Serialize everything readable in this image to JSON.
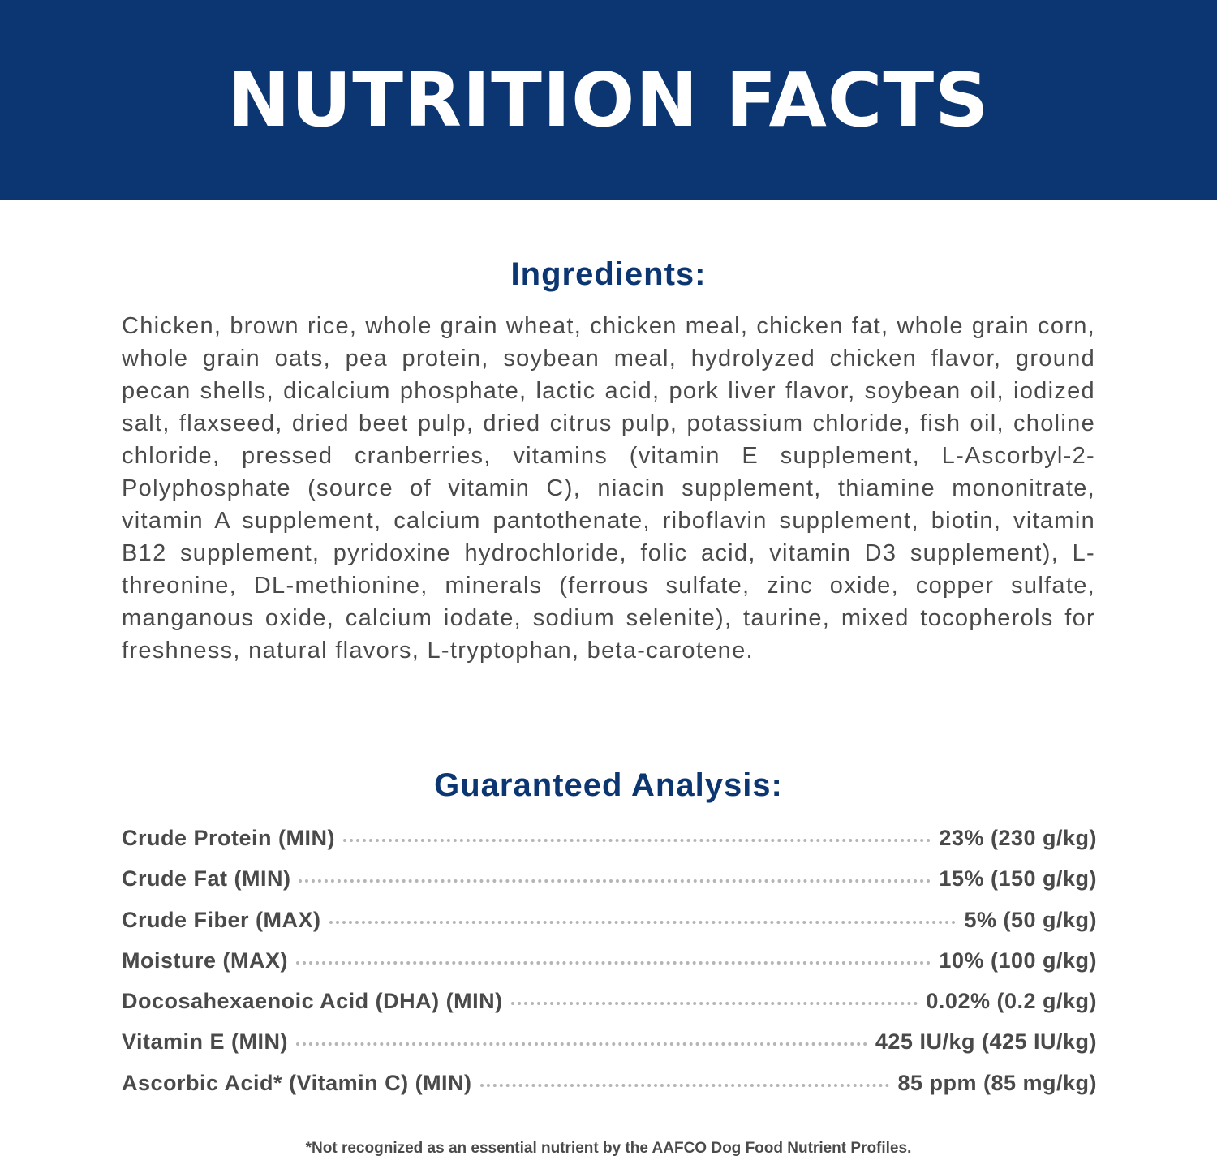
{
  "header": {
    "title": "NUTRITION FACTS",
    "background": "#0b3672"
  },
  "ingredients": {
    "heading": "Ingredients:",
    "text": "Chicken, brown rice, whole grain wheat, chicken meal, chicken fat, whole grain corn, whole grain oats, pea protein, soybean meal, hydrolyzed chicken flavor, ground pecan shells, dicalcium phosphate, lactic acid, pork liver flavor, soybean oil, iodized salt, flaxseed, dried beet pulp, dried citrus pulp, potassium chloride, fish oil, choline chloride, pressed cranberries, vitamins (vitamin E supplement, L-Ascorbyl-2-Polyphosphate (source of vitamin C), niacin supplement, thiamine mononitrate, vitamin A supplement, calcium pantothenate, riboflavin supplement, biotin, vitamin B12 supplement, pyridoxine hydrochloride, folic acid, vitamin D3 supplement), L-threonine, DL-methionine, minerals (ferrous sulfate, zinc oxide, copper sulfate, manganous oxide, calcium iodate, sodium selenite), taurine, mixed tocopherols for freshness, natural flavors, L-tryptophan, beta-carotene."
  },
  "analysis": {
    "heading": "Guaranteed Analysis:",
    "rows": [
      {
        "label": "Crude Protein (MIN)",
        "value": "23% (230 g/kg)"
      },
      {
        "label": "Crude Fat (MIN)",
        "value": "15% (150 g/kg)"
      },
      {
        "label": "Crude Fiber (MAX)",
        "value": "5% (50 g/kg)"
      },
      {
        "label": "Moisture (MAX)",
        "value": "10% (100 g/kg)"
      },
      {
        "label": "Docosahexaenoic Acid (DHA) (MIN)",
        "value": "0.02% (0.2 g/kg)"
      },
      {
        "label": "Vitamin E (MIN)",
        "value": "425 IU/kg (425 IU/kg)"
      },
      {
        "label": "Ascorbic Acid* (Vitamin C) (MIN)",
        "value": "85 ppm (85 mg/kg)"
      }
    ]
  },
  "footnote": "*Not recognized as an essential nutrient by the AAFCO Dog Food Nutrient Profiles."
}
